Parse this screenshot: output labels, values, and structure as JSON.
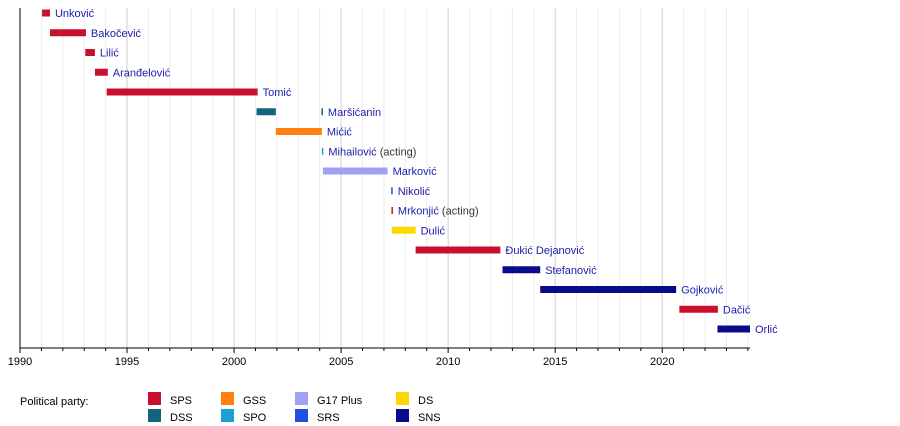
{
  "chart_data": {
    "type": "timeline",
    "xlim": [
      1990,
      2024.1
    ],
    "x_ticks": [
      "1990",
      "1995",
      "2000",
      "2005",
      "2010",
      "2015",
      "2020"
    ],
    "grid": "yearly minor, 5-year major",
    "legend_title": "Political party:",
    "legend_placement": "bottom-left",
    "parties": [
      {
        "name": "SPS",
        "color": "#c8102e"
      },
      {
        "name": "DSS",
        "color": "#15627e"
      },
      {
        "name": "GSS",
        "color": "#ff8010"
      },
      {
        "name": "SPO",
        "color": "#1ea0d0"
      },
      {
        "name": "G17 Plus",
        "color": "#a0a0f5"
      },
      {
        "name": "SRS",
        "color": "#2050e0"
      },
      {
        "name": "DS",
        "color": "#ffd700"
      },
      {
        "name": "SNS",
        "color": "#0a0a8c"
      }
    ],
    "rows": [
      {
        "name": "Unković",
        "note": "",
        "terms": [
          {
            "start": 1991.03,
            "end": 1991.4,
            "party": "SPS"
          }
        ]
      },
      {
        "name": "Bakočević",
        "note": "",
        "terms": [
          {
            "start": 1991.4,
            "end": 1993.08,
            "party": "SPS"
          }
        ]
      },
      {
        "name": "Lilić",
        "note": "",
        "terms": [
          {
            "start": 1993.05,
            "end": 1993.5,
            "party": "SPS"
          }
        ]
      },
      {
        "name": "Aranđelović",
        "note": "",
        "terms": [
          {
            "start": 1993.5,
            "end": 1994.1,
            "party": "SPS"
          }
        ]
      },
      {
        "name": "Tomić",
        "note": "",
        "terms": [
          {
            "start": 1994.05,
            "end": 2001.1,
            "party": "SPS"
          }
        ]
      },
      {
        "name": "Maršićanin",
        "note": "",
        "terms": [
          {
            "start": 2001.05,
            "end": 2001.95,
            "party": "DSS"
          },
          {
            "start": 2004.08,
            "end": 2004.15,
            "party": "DSS"
          }
        ]
      },
      {
        "name": "Mićić",
        "note": "",
        "terms": [
          {
            "start": 2001.95,
            "end": 2004.1,
            "party": "GSS"
          }
        ]
      },
      {
        "name": "Mihailović",
        "note": "(acting)",
        "terms": [
          {
            "start": 2004.1,
            "end": 2004.15,
            "party": "SPO"
          }
        ]
      },
      {
        "name": "Marković",
        "note": "",
        "terms": [
          {
            "start": 2004.15,
            "end": 2007.17,
            "party": "G17 Plus"
          }
        ]
      },
      {
        "name": "Nikolić",
        "note": "",
        "terms": [
          {
            "start": 2007.34,
            "end": 2007.4,
            "party": "SRS"
          }
        ]
      },
      {
        "name": "Mrkonjić",
        "note": "(acting)",
        "terms": [
          {
            "start": 2007.35,
            "end": 2007.41,
            "party": "SPS"
          }
        ]
      },
      {
        "name": "Dulić",
        "note": "",
        "terms": [
          {
            "start": 2007.37,
            "end": 2008.48,
            "party": "DS"
          }
        ]
      },
      {
        "name": "Đukić Dejanović",
        "note": "",
        "terms": [
          {
            "start": 2008.48,
            "end": 2012.44,
            "party": "SPS"
          }
        ]
      },
      {
        "name": "Stefanović",
        "note": "",
        "terms": [
          {
            "start": 2012.54,
            "end": 2014.3,
            "party": "SNS"
          }
        ]
      },
      {
        "name": "Gojković",
        "note": "",
        "terms": [
          {
            "start": 2014.3,
            "end": 2020.65,
            "party": "SNS"
          }
        ]
      },
      {
        "name": "Dačić",
        "note": "",
        "terms": [
          {
            "start": 2020.8,
            "end": 2022.6,
            "party": "SPS"
          }
        ]
      },
      {
        "name": "Orlić",
        "note": "",
        "terms": [
          {
            "start": 2022.58,
            "end": 2024.1,
            "party": "SNS"
          }
        ]
      }
    ]
  }
}
